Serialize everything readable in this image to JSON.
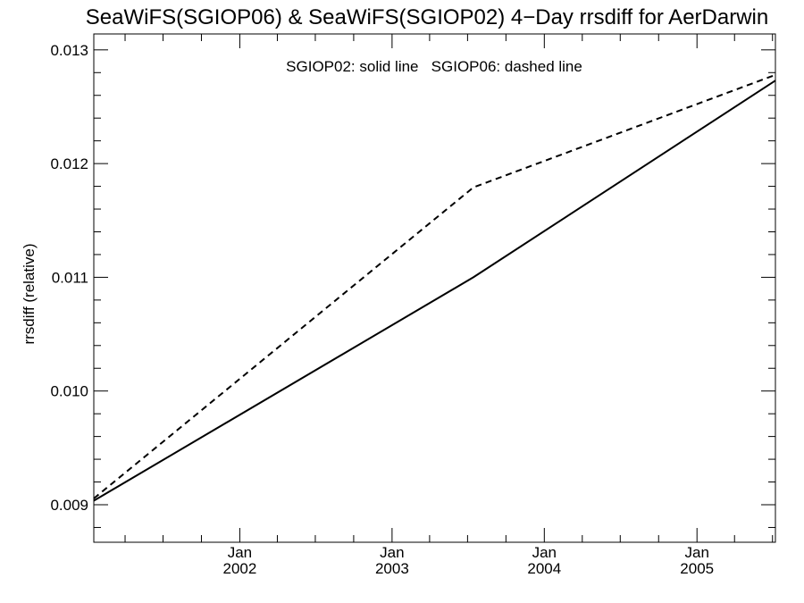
{
  "chart_data": {
    "type": "line",
    "title": "SeaWiFS(SGIOP06) & SeaWiFS(SGIOP02) 4−Day rrsdiff for AerDarwin",
    "xlabel": "",
    "ylabel": "rrsdiff (relative)",
    "annotation": "SGIOP02: solid line   SGIOP06: dashed line",
    "xlim": [
      "2001-01-16",
      "2005-07-08"
    ],
    "ylim": [
      0.00867,
      0.01314
    ],
    "y_ticks": [
      0.009,
      0.01,
      0.011,
      0.012,
      0.013
    ],
    "y_tick_labels": [
      "0.009",
      "0.010",
      "0.011",
      "0.012",
      "0.013"
    ],
    "y_minor_step": 0.0002,
    "x_ticks": [
      {
        "date": "2002-01-01",
        "month": "Jan",
        "year": "2002"
      },
      {
        "date": "2003-01-01",
        "month": "Jan",
        "year": "2003"
      },
      {
        "date": "2004-01-01",
        "month": "Jan",
        "year": "2004"
      },
      {
        "date": "2005-01-01",
        "month": "Jan",
        "year": "2005"
      }
    ],
    "x_minor_ticks": [
      "2001-04-01",
      "2001-07-01",
      "2001-10-01",
      "2002-04-01",
      "2002-07-01",
      "2002-10-01",
      "2003-04-01",
      "2003-07-01",
      "2003-10-01",
      "2004-04-01",
      "2004-07-01",
      "2004-10-01",
      "2005-04-01",
      "2005-07-01"
    ],
    "grid": false,
    "series": [
      {
        "name": "SGIOP02",
        "style": "solid",
        "color": "#000000",
        "points": [
          {
            "x": "2001-01-16",
            "y": 0.009035
          },
          {
            "x": "2003-07-15",
            "y": 0.011
          },
          {
            "x": "2005-07-08",
            "y": 0.01273
          }
        ]
      },
      {
        "name": "SGIOP06",
        "style": "dashed",
        "color": "#000000",
        "points": [
          {
            "x": "2001-01-16",
            "y": 0.009055
          },
          {
            "x": "2003-07-15",
            "y": 0.01179
          },
          {
            "x": "2005-07-08",
            "y": 0.01278
          }
        ]
      }
    ]
  }
}
